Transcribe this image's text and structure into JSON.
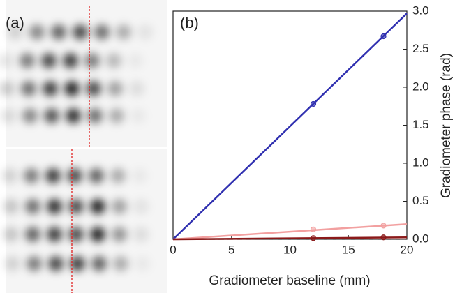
{
  "panel_a_label": "(a)",
  "chart_data": {
    "type": "scatter",
    "panel_label": "(b)",
    "x_label": "Gradiometer baseline (mm)",
    "y_label": "Gradiometer phase (rad)",
    "xlim": [
      0,
      20
    ],
    "ylim": [
      0,
      3.0
    ],
    "xticks": [
      0,
      5,
      10,
      15,
      20
    ],
    "yticks": [
      {
        "value": 0,
        "label": "0.0"
      },
      0.5,
      {
        "value": 1,
        "label": "1.0"
      },
      1.5,
      {
        "value": 2,
        "label": "2.0"
      },
      2.5,
      {
        "value": 3,
        "label": "3.0"
      }
    ],
    "hline": {
      "value": 0,
      "style": "dashed",
      "color": "#555555"
    },
    "series": [
      {
        "color": "#3030b0",
        "x": [
          12,
          18
        ],
        "values": [
          1.78,
          2.67
        ],
        "fit": {
          "x": [
            0,
            20
          ],
          "values": [
            0,
            2.97
          ]
        }
      },
      {
        "color": "#f2a0a0",
        "x": [
          12,
          18
        ],
        "values": [
          0.13,
          0.18
        ],
        "fit": {
          "x": [
            0,
            20
          ],
          "values": [
            0,
            0.2
          ]
        }
      },
      {
        "color": "#8b1a1a",
        "x": [
          12,
          18
        ],
        "values": [
          0.015,
          0.025
        ],
        "fit": {
          "x": [
            0,
            20
          ],
          "values": [
            0,
            0.025
          ]
        }
      }
    ]
  }
}
